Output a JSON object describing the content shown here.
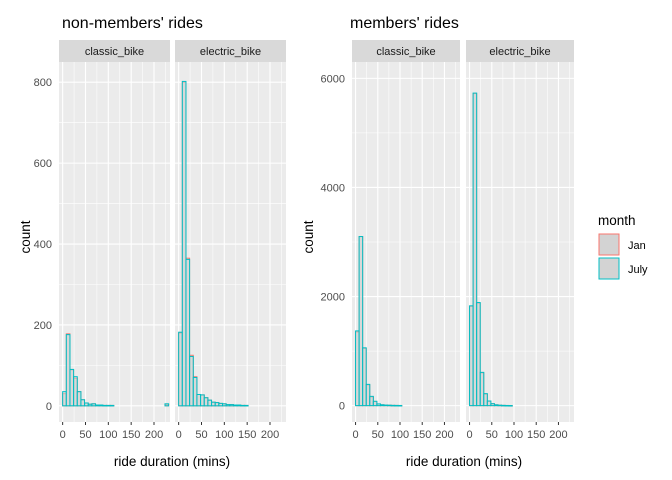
{
  "chart_data": [
    {
      "type": "bar",
      "variant": "histogram",
      "title": "non-members' rides",
      "xlabel": "ride duration (mins)",
      "ylabel": "count",
      "xlim": [
        -8,
        235
      ],
      "ylim": [
        -40,
        850
      ],
      "xticks": [
        0,
        50,
        100,
        150,
        200
      ],
      "xticklabels": [
        "0",
        "50",
        "100",
        "150",
        "200"
      ],
      "yticks": [
        0,
        200,
        400,
        600,
        800
      ],
      "bin_width": 8,
      "facets": [
        {
          "label": "classic_bike",
          "series": [
            {
              "name": "Jan",
              "bins": [
                [
                  0,
                  30
                ],
                [
                  8,
                  178
                ],
                [
                  16,
                  89
                ],
                [
                  24,
                  68
                ],
                [
                  32,
                  35
                ],
                [
                  40,
                  15
                ],
                [
                  48,
                  7
                ],
                [
                  56,
                  4
                ],
                [
                  64,
                  5
                ],
                [
                  72,
                  2
                ],
                [
                  80,
                  2
                ],
                [
                  88,
                  1
                ],
                [
                  96,
                  1
                ],
                [
                  104,
                  1
                ],
                [
                  224,
                  3
                ]
              ]
            },
            {
              "name": "July",
              "bins": [
                [
                  0,
                  35
                ],
                [
                  8,
                  176
                ],
                [
                  16,
                  90
                ],
                [
                  24,
                  72
                ],
                [
                  32,
                  35
                ],
                [
                  40,
                  15
                ],
                [
                  48,
                  7
                ],
                [
                  56,
                  4
                ],
                [
                  64,
                  5
                ],
                [
                  72,
                  2
                ],
                [
                  80,
                  2
                ],
                [
                  88,
                  1
                ],
                [
                  96,
                  1
                ],
                [
                  104,
                  1
                ],
                [
                  224,
                  5
                ]
              ]
            }
          ]
        },
        {
          "label": "electric_bike",
          "series": [
            {
              "name": "Jan",
              "bins": [
                [
                  0,
                  180
                ],
                [
                  8,
                  800
                ],
                [
                  16,
                  365
                ],
                [
                  24,
                  125
                ],
                [
                  32,
                  72
                ],
                [
                  40,
                  28
                ],
                [
                  48,
                  27
                ],
                [
                  56,
                  20
                ],
                [
                  64,
                  14
                ],
                [
                  72,
                  9
                ],
                [
                  80,
                  8
                ],
                [
                  88,
                  6
                ],
                [
                  96,
                  5
                ],
                [
                  104,
                  3
                ],
                [
                  112,
                  3
                ],
                [
                  120,
                  2
                ],
                [
                  128,
                  2
                ],
                [
                  136,
                  1
                ],
                [
                  144,
                  1
                ]
              ]
            },
            {
              "name": "July",
              "bins": [
                [
                  0,
                  182
                ],
                [
                  8,
                  802
                ],
                [
                  16,
                  362
                ],
                [
                  24,
                  122
                ],
                [
                  32,
                  70
                ],
                [
                  40,
                  28
                ],
                [
                  48,
                  27
                ],
                [
                  56,
                  20
                ],
                [
                  64,
                  14
                ],
                [
                  72,
                  9
                ],
                [
                  80,
                  8
                ],
                [
                  88,
                  6
                ],
                [
                  96,
                  5
                ],
                [
                  104,
                  3
                ],
                [
                  112,
                  3
                ],
                [
                  120,
                  2
                ],
                [
                  128,
                  2
                ],
                [
                  136,
                  1
                ],
                [
                  144,
                  1
                ]
              ]
            }
          ]
        }
      ]
    },
    {
      "type": "bar",
      "variant": "histogram",
      "title": "members' rides",
      "xlabel": "ride duration (mins)",
      "ylabel": "count",
      "xlim": [
        -8,
        235
      ],
      "ylim": [
        -300,
        6300
      ],
      "xticks": [
        0,
        50,
        100,
        150,
        200
      ],
      "xticklabels": [
        "0",
        "50",
        "100",
        "150",
        "200"
      ],
      "yticks": [
        0,
        2000,
        4000,
        6000
      ],
      "bin_width": 8,
      "facets": [
        {
          "label": "classic_bike",
          "series": [
            {
              "name": "Jan",
              "bins": [
                [
                  0,
                  1350
                ],
                [
                  8,
                  3100
                ],
                [
                  16,
                  1050
                ],
                [
                  24,
                  380
                ],
                [
                  32,
                  160
                ],
                [
                  40,
                  75
                ],
                [
                  48,
                  30
                ],
                [
                  56,
                  15
                ],
                [
                  64,
                  10
                ],
                [
                  72,
                  8
                ],
                [
                  80,
                  5
                ],
                [
                  88,
                  4
                ],
                [
                  96,
                  3
                ]
              ]
            },
            {
              "name": "July",
              "bins": [
                [
                  0,
                  1370
                ],
                [
                  8,
                  3100
                ],
                [
                  16,
                  1060
                ],
                [
                  24,
                  390
                ],
                [
                  32,
                  170
                ],
                [
                  40,
                  80
                ],
                [
                  48,
                  32
                ],
                [
                  56,
                  16
                ],
                [
                  64,
                  10
                ],
                [
                  72,
                  8
                ],
                [
                  80,
                  5
                ],
                [
                  88,
                  4
                ],
                [
                  96,
                  3
                ]
              ]
            }
          ]
        },
        {
          "label": "electric_bike",
          "series": [
            {
              "name": "Jan",
              "bins": [
                [
                  0,
                  1820
                ],
                [
                  8,
                  5720
                ],
                [
                  16,
                  1880
                ],
                [
                  24,
                  600
                ],
                [
                  32,
                  210
                ],
                [
                  40,
                  80
                ],
                [
                  48,
                  35
                ],
                [
                  56,
                  15
                ],
                [
                  64,
                  8
                ],
                [
                  72,
                  5
                ],
                [
                  80,
                  3
                ],
                [
                  88,
                  2
                ]
              ]
            },
            {
              "name": "July",
              "bins": [
                [
                  0,
                  1830
                ],
                [
                  8,
                  5730
                ],
                [
                  16,
                  1890
                ],
                [
                  24,
                  610
                ],
                [
                  32,
                  220
                ],
                [
                  40,
                  85
                ],
                [
                  48,
                  36
                ],
                [
                  56,
                  15
                ],
                [
                  64,
                  8
                ],
                [
                  72,
                  5
                ],
                [
                  80,
                  3
                ],
                [
                  88,
                  2
                ]
              ]
            }
          ]
        }
      ]
    }
  ],
  "legend": {
    "title": "month",
    "placement": "right",
    "items": [
      {
        "label": "Jan",
        "color": "#F8766D"
      },
      {
        "label": "July",
        "color": "#00BFC4"
      }
    ]
  },
  "colors": {
    "panel_background": "#EBEBEB",
    "strip_background": "#D9D9D9",
    "grid": "#FFFFFF",
    "bar_fill": "#D3D3D3",
    "Jan": "#F8766D",
    "July": "#00BFC4"
  }
}
